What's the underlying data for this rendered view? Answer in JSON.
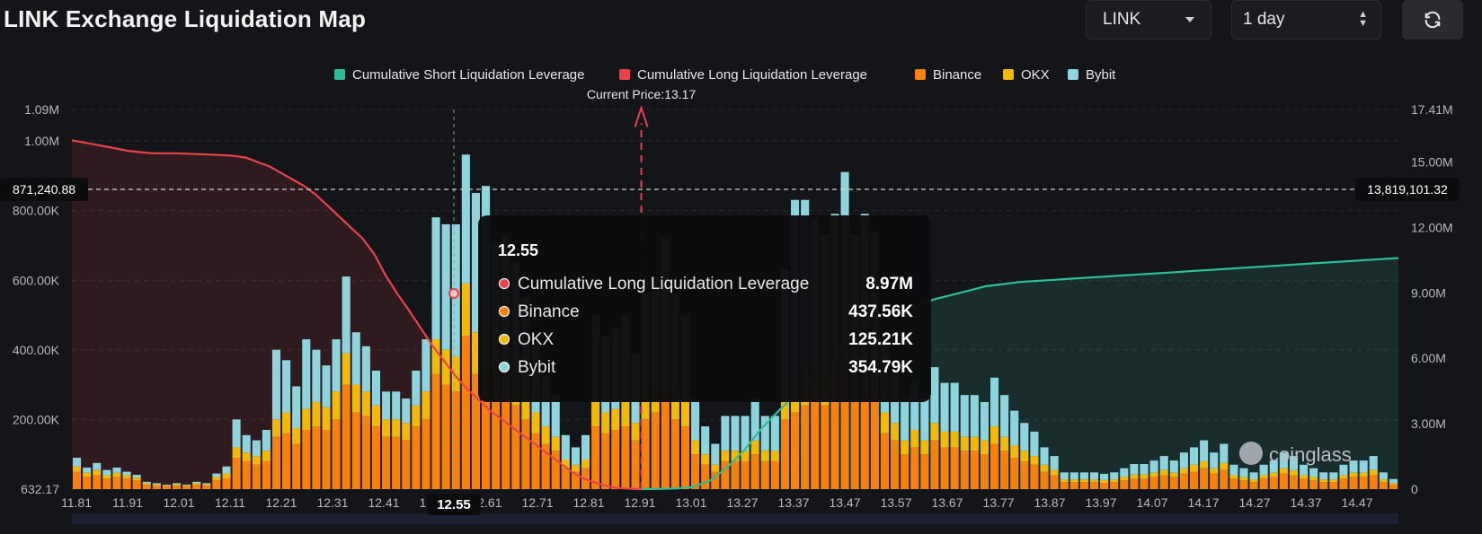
{
  "header": {
    "title": "LINK Exchange Liquidation Map",
    "coin_select": "LINK",
    "range_select": "1 day"
  },
  "colors": {
    "short": "#2dbf9a",
    "long": "#e8424d",
    "binance": "#f5820f",
    "okx": "#f0b90b",
    "bybit": "#8fd3dc",
    "background": "#141519",
    "tooltip_bg": "#0c0c0e"
  },
  "chart_data": {
    "type": "bar",
    "legend": [
      {
        "name": "Cumulative Short Liquidation Leverage",
        "color": "#2dbf9a"
      },
      {
        "name": "Cumulative Long Liquidation Leverage",
        "color": "#e8424d"
      },
      {
        "name": "Binance",
        "color": "#f5820f"
      },
      {
        "name": "OKX",
        "color": "#f0b90b"
      },
      {
        "name": "Bybit",
        "color": "#8fd3dc"
      }
    ],
    "legend_position": "top-center",
    "x_tick_labels": [
      "11.81",
      "11.91",
      "12.01",
      "12.11",
      "12.21",
      "12.31",
      "12.41",
      "12.51",
      "12.61",
      "12.71",
      "12.81",
      "12.91",
      "13.01",
      "13.27",
      "13.37",
      "13.47",
      "13.57",
      "13.67",
      "13.77",
      "13.87",
      "13.97",
      "14.07",
      "14.17",
      "14.27",
      "14.37",
      "14.47"
    ],
    "left_axis_ticks": [
      "632.17",
      "200.00K",
      "400.00K",
      "600.00K",
      "800.00K",
      "1.00M",
      "1.09M"
    ],
    "left_axis_range": [
      632.17,
      1090000
    ],
    "right_axis_ticks": [
      "0",
      "3.00M",
      "6.00M",
      "9.00M",
      "12.00M",
      "15.00M",
      "17.41M"
    ],
    "right_axis_range": [
      0,
      17410000
    ],
    "current_price_label": "Current Price:13.17",
    "current_price": 13.17,
    "crosshair": {
      "left_value": "871,240.88",
      "right_value": "13,819,101.32",
      "x_label": "12.55"
    },
    "tooltip": {
      "price": "12.55",
      "rows": [
        {
          "name": "Cumulative Long Liquidation Leverage",
          "value": "8.97M",
          "color": "#e8424d"
        },
        {
          "name": "Binance",
          "value": "437.56K",
          "color": "#f5820f"
        },
        {
          "name": "OKX",
          "value": "125.21K",
          "color": "#f0b90b"
        },
        {
          "name": "Bybit",
          "value": "354.79K",
          "color": "#8fd3dc"
        }
      ]
    },
    "watermark": "coinglass",
    "bars_binance": [
      50,
      35,
      40,
      30,
      35,
      30,
      25,
      12,
      10,
      8,
      10,
      8,
      12,
      10,
      25,
      30,
      90,
      80,
      70,
      80,
      150,
      160,
      130,
      170,
      180,
      170,
      200,
      300,
      220,
      210,
      180,
      150,
      150,
      140,
      180,
      200,
      330,
      300,
      280,
      440,
      330,
      340,
      260,
      250,
      240,
      200,
      160,
      130,
      110,
      60,
      50,
      60,
      180,
      160,
      170,
      180,
      140,
      200,
      220,
      260,
      200,
      180,
      100,
      70,
      50,
      80,
      80,
      80,
      100,
      80,
      80,
      200,
      220,
      240,
      260,
      240,
      260,
      330,
      250,
      280,
      260,
      160,
      140,
      100,
      120,
      100,
      140,
      120,
      120,
      110,
      110,
      100,
      130,
      110,
      90,
      80,
      70,
      50,
      40,
      20,
      20,
      20,
      20,
      18,
      20,
      25,
      30,
      30,
      35,
      40,
      35,
      45,
      50,
      60,
      45,
      55,
      30,
      25,
      20,
      30,
      35,
      45,
      40,
      30,
      25,
      20,
      20,
      30,
      35,
      35,
      40,
      20,
      12
    ],
    "bars_okx": [
      15,
      12,
      15,
      10,
      12,
      10,
      8,
      5,
      4,
      3,
      4,
      3,
      5,
      4,
      10,
      15,
      30,
      25,
      25,
      30,
      50,
      60,
      45,
      60,
      70,
      65,
      80,
      90,
      80,
      70,
      60,
      50,
      50,
      50,
      60,
      80,
      100,
      100,
      100,
      150,
      120,
      130,
      100,
      100,
      90,
      80,
      60,
      50,
      40,
      25,
      20,
      25,
      70,
      60,
      60,
      70,
      50,
      80,
      90,
      100,
      80,
      70,
      40,
      30,
      20,
      30,
      30,
      30,
      40,
      30,
      30,
      80,
      90,
      90,
      100,
      90,
      100,
      120,
      100,
      110,
      100,
      60,
      50,
      40,
      50,
      40,
      50,
      45,
      45,
      40,
      40,
      40,
      50,
      40,
      35,
      30,
      25,
      20,
      15,
      8,
      8,
      8,
      8,
      8,
      8,
      10,
      12,
      12,
      12,
      15,
      12,
      15,
      20,
      20,
      15,
      20,
      10,
      10,
      8,
      10,
      12,
      15,
      15,
      10,
      10,
      8,
      8,
      10,
      12,
      12,
      15,
      8,
      5
    ],
    "bars_bybit": [
      25,
      15,
      20,
      15,
      15,
      10,
      8,
      4,
      3,
      2,
      3,
      2,
      4,
      3,
      10,
      20,
      80,
      50,
      45,
      60,
      200,
      150,
      120,
      200,
      150,
      120,
      150,
      220,
      150,
      130,
      100,
      80,
      80,
      70,
      100,
      150,
      350,
      360,
      380,
      370,
      400,
      400,
      350,
      380,
      320,
      270,
      200,
      150,
      120,
      70,
      50,
      70,
      250,
      220,
      230,
      250,
      200,
      280,
      300,
      360,
      280,
      250,
      120,
      80,
      60,
      100,
      100,
      100,
      120,
      100,
      100,
      350,
      520,
      500,
      420,
      400,
      430,
      460,
      380,
      400,
      380,
      200,
      150,
      120,
      140,
      120,
      160,
      140,
      140,
      120,
      120,
      110,
      140,
      120,
      100,
      80,
      70,
      50,
      40,
      20,
      20,
      20,
      20,
      18,
      20,
      25,
      30,
      30,
      35,
      40,
      35,
      45,
      50,
      60,
      45,
      55,
      30,
      25,
      20,
      30,
      35,
      45,
      40,
      30,
      25,
      20,
      20,
      30,
      35,
      35,
      40,
      20,
      12
    ],
    "long_cumulative": [
      16.0,
      15.9,
      15.8,
      15.7,
      15.6,
      15.5,
      15.45,
      15.4,
      15.4,
      15.4,
      15.38,
      15.36,
      15.34,
      15.32,
      15.28,
      15.2,
      15.0,
      14.8,
      14.5,
      14.2,
      13.9,
      13.5,
      13.0,
      12.5,
      12.0,
      11.5,
      10.8,
      9.8,
      8.97,
      8.2,
      7.4,
      6.6,
      5.9,
      5.2,
      4.6,
      4.1,
      3.6,
      3.2,
      2.8,
      2.4,
      2.0,
      1.6,
      1.2,
      0.8,
      0.5,
      0.3,
      0.15,
      0.05,
      0.02,
      0.0
    ],
    "short_cumulative": [
      0.0,
      0.01,
      0.03,
      0.1,
      0.4,
      1.0,
      1.8,
      2.8,
      3.6,
      4.4,
      5.2,
      6.0,
      6.8,
      7.4,
      7.8,
      8.1,
      8.4,
      8.7,
      8.9,
      9.1,
      9.3,
      9.4,
      9.5,
      9.55,
      9.6,
      9.65,
      9.7,
      9.75,
      9.8,
      9.85,
      9.9,
      9.95,
      10.0,
      10.05,
      10.1,
      10.15,
      10.2,
      10.25,
      10.3,
      10.35,
      10.4,
      10.45,
      10.5,
      10.55,
      10.6
    ]
  }
}
